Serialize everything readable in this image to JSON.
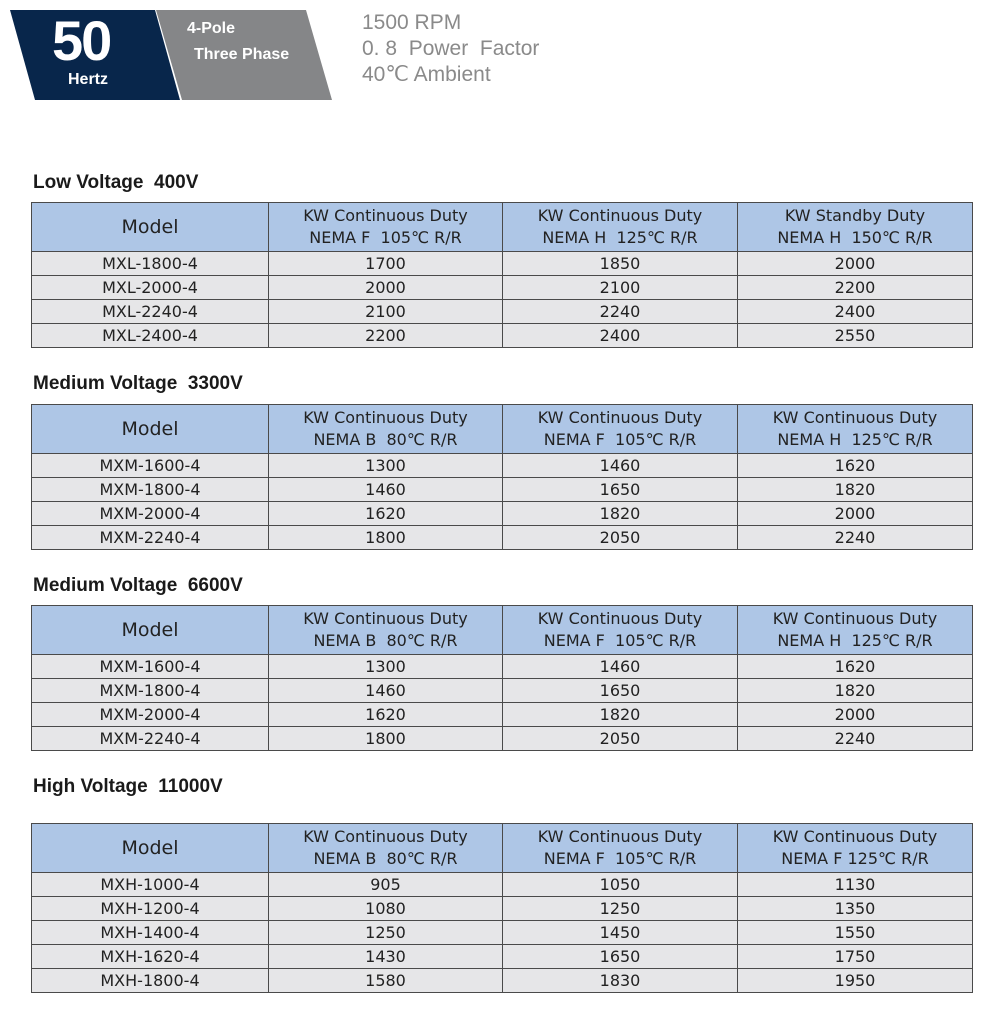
{
  "badge": {
    "frequency": "50",
    "unit": "Hertz",
    "poles": "4-Pole",
    "phase": "Three Phase"
  },
  "specs": [
    "1500 RPM",
    "0. 8  Power  Factor",
    "40℃ Ambient"
  ],
  "colors": {
    "navy": "#08264b",
    "gray": "#858688",
    "header": "#aec6e6",
    "row": "#e6e6e8"
  },
  "tables": [
    {
      "title": "Low Voltage  400V",
      "headers": [
        [
          "Model"
        ],
        [
          "KW Continuous Duty",
          "NEMA F  105℃ R/R"
        ],
        [
          "KW Continuous Duty",
          "NEMA H  125℃ R/R"
        ],
        [
          "KW Standby Duty",
          "NEMA H  150℃ R/R"
        ]
      ],
      "rows": [
        [
          "MXL-1800-4",
          "1700",
          "1850",
          "2000"
        ],
        [
          "MXL-2000-4",
          "2000",
          "2100",
          "2200"
        ],
        [
          "MXL-2240-4",
          "2100",
          "2240",
          "2400"
        ],
        [
          "MXL-2400-4",
          "2200",
          "2400",
          "2550"
        ]
      ]
    },
    {
      "title": "Medium Voltage  3300V",
      "headers": [
        [
          "Model"
        ],
        [
          "KW Continuous Duty",
          "NEMA B  80℃ R/R"
        ],
        [
          "KW Continuous Duty",
          "NEMA F  105℃ R/R"
        ],
        [
          "KW Continuous Duty",
          "NEMA H  125℃ R/R"
        ]
      ],
      "rows": [
        [
          "MXM-1600-4",
          "1300",
          "1460",
          "1620"
        ],
        [
          "MXM-1800-4",
          "1460",
          "1650",
          "1820"
        ],
        [
          "MXM-2000-4",
          "1620",
          "1820",
          "2000"
        ],
        [
          "MXM-2240-4",
          "1800",
          "2050",
          "2240"
        ]
      ]
    },
    {
      "title": "Medium Voltage  6600V",
      "headers": [
        [
          "Model"
        ],
        [
          "KW Continuous Duty",
          "NEMA B  80℃ R/R"
        ],
        [
          "KW Continuous Duty",
          "NEMA F  105℃ R/R"
        ],
        [
          "KW Continuous Duty",
          "NEMA H  125℃ R/R"
        ]
      ],
      "rows": [
        [
          "MXM-1600-4",
          "1300",
          "1460",
          "1620"
        ],
        [
          "MXM-1800-4",
          "1460",
          "1650",
          "1820"
        ],
        [
          "MXM-2000-4",
          "1620",
          "1820",
          "2000"
        ],
        [
          "MXM-2240-4",
          "1800",
          "2050",
          "2240"
        ]
      ]
    },
    {
      "title": "High Voltage  11000V",
      "headers": [
        [
          "Model"
        ],
        [
          "KW Continuous Duty",
          "NEMA B  80℃ R/R"
        ],
        [
          "KW Continuous Duty",
          "NEMA F  105℃ R/R"
        ],
        [
          "KW Continuous Duty",
          "NEMA F 125℃ R/R"
        ]
      ],
      "rows": [
        [
          "MXH-1000-4",
          "905",
          "1050",
          "1130"
        ],
        [
          "MXH-1200-4",
          "1080",
          "1250",
          "1350"
        ],
        [
          "MXH-1400-4",
          "1250",
          "1450",
          "1550"
        ],
        [
          "MXH-1620-4",
          "1430",
          "1650",
          "1750"
        ],
        [
          "MXH-1800-4",
          "1580",
          "1830",
          "1950"
        ]
      ]
    }
  ]
}
